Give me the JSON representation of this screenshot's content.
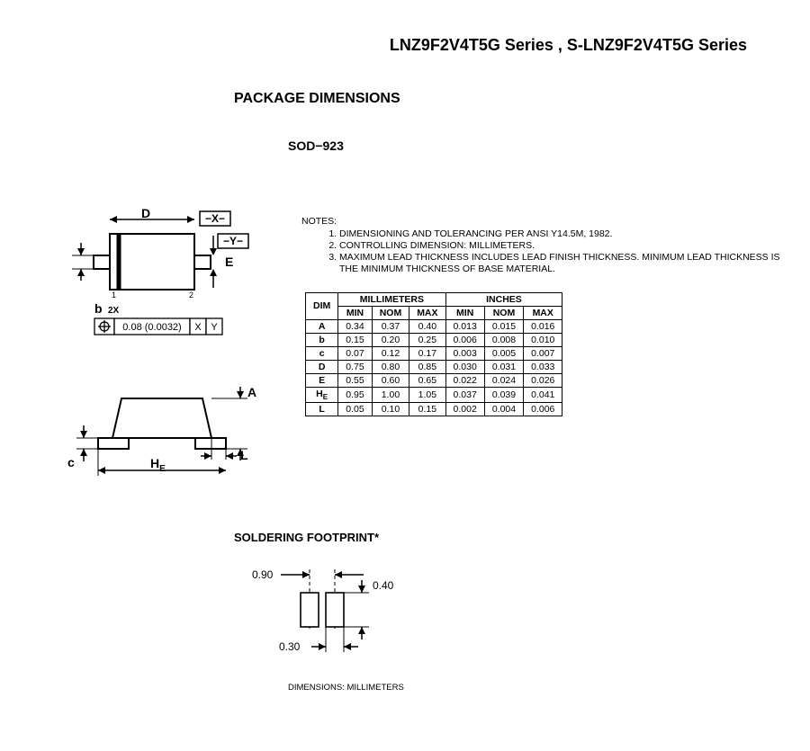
{
  "page_title": "LNZ9F2V4T5G Series , S-LNZ9F2V4T5G Series",
  "section_title": "PACKAGE DIMENSIONS",
  "package_code": "SOD−923",
  "gdt_tolerance": "0.08 (0.0032)",
  "gdt_datum_x": "X",
  "gdt_datum_y": "Y",
  "labels": {
    "D": "D",
    "X": "−X−",
    "Y": "−Y−",
    "E": "E",
    "b": "b",
    "b2x": "2X",
    "A": "A",
    "c": "c",
    "L": "L",
    "HE": "H",
    "HE_sub": "E",
    "pin1": "1",
    "pin2": "2"
  },
  "notes_label": "NOTES:",
  "notes": [
    "DIMENSIONING AND TOLERANCING PER ANSI Y14.5M, 1982.",
    "CONTROLLING DIMENSION: MILLIMETERS.",
    "MAXIMUM LEAD THICKNESS INCLUDES LEAD FINISH THICKNESS. MINIMUM LEAD THICKNESS IS THE MINIMUM THICKNESS OF BASE MATERIAL."
  ],
  "dim_table": {
    "col_dim": "DIM",
    "group_mm": "MILLIMETERS",
    "group_in": "INCHES",
    "col_min": "MIN",
    "col_nom": "NOM",
    "col_max": "MAX",
    "rows": [
      {
        "dim": "A",
        "mm": [
          "0.34",
          "0.37",
          "0.40"
        ],
        "in": [
          "0.013",
          "0.015",
          "0.016"
        ]
      },
      {
        "dim": "b",
        "mm": [
          "0.15",
          "0.20",
          "0.25"
        ],
        "in": [
          "0.006",
          "0.008",
          "0.010"
        ]
      },
      {
        "dim": "c",
        "mm": [
          "0.07",
          "0.12",
          "0.17"
        ],
        "in": [
          "0.003",
          "0.005",
          "0.007"
        ]
      },
      {
        "dim": "D",
        "mm": [
          "0.75",
          "0.80",
          "0.85"
        ],
        "in": [
          "0.030",
          "0.031",
          "0.033"
        ]
      },
      {
        "dim": "E",
        "mm": [
          "0.55",
          "0.60",
          "0.65"
        ],
        "in": [
          "0.022",
          "0.024",
          "0.026"
        ]
      },
      {
        "dim": "HE",
        "mm": [
          "0.95",
          "1.00",
          "1.05"
        ],
        "in": [
          "0.037",
          "0.039",
          "0.041"
        ],
        "sub": "E",
        "pre": "H"
      },
      {
        "dim": "L",
        "mm": [
          "0.05",
          "0.10",
          "0.15"
        ],
        "in": [
          "0.002",
          "0.004",
          "0.006"
        ]
      }
    ]
  },
  "soldering_title": "SOLDERING FOOTPRINT*",
  "footprint": {
    "spacing": "0.90",
    "pad_w": "0.30",
    "pad_h": "0.40"
  },
  "footprint_units": "DIMENSIONS: MILLIMETERS"
}
